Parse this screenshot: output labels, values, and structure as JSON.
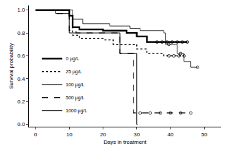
{
  "chart_data": {
    "type": "line",
    "x_label": "Days in treatment",
    "y_label": "Survival probability",
    "xlim": [
      -2,
      55
    ],
    "xticks": [
      0,
      10,
      20,
      30,
      40,
      50
    ],
    "ylim": [
      -0.02,
      1.04
    ],
    "yticks": [
      {
        "value": 0,
        "label": "0.0"
      },
      0.2,
      0.4,
      0.6,
      0.8,
      {
        "value": 1,
        "label": "1.0"
      }
    ],
    "grid": false,
    "legend": "lower left",
    "series": [
      {
        "name": "0 µg/L",
        "color": "#000000",
        "line_style": "solid",
        "x": [
          0,
          10,
          11,
          13,
          20,
          27,
          30,
          33,
          45
        ],
        "values": [
          1.0,
          0.95,
          0.85,
          0.83,
          0.82,
          0.8,
          0.77,
          0.72,
          0.72
        ],
        "censored": {
          "x": [
            36,
            37.5,
            39,
            40.5,
            42,
            43.5,
            45
          ],
          "values": [
            0.72,
            0.72,
            0.72,
            0.72,
            0.72,
            0.72,
            0.72
          ]
        }
      },
      {
        "name": "25 µg/L",
        "color": "#000000",
        "line_style": "dot",
        "x": [
          0,
          10,
          11,
          13,
          20,
          23,
          30,
          33,
          38,
          44
        ],
        "values": [
          1.0,
          0.95,
          0.78,
          0.75,
          0.74,
          0.7,
          0.66,
          0.62,
          0.6,
          0.6
        ],
        "censored": {
          "x": [
            39.5,
            41,
            42.5,
            44
          ],
          "values": [
            0.6,
            0.6,
            0.6,
            0.6
          ]
        }
      },
      {
        "name": "100 µg/L",
        "color": "#000000",
        "line_style": "solid",
        "x": [
          0,
          11,
          14,
          22,
          28,
          31,
          38,
          38.5,
          42,
          44,
          46,
          48
        ],
        "values": [
          1.0,
          0.92,
          0.88,
          0.86,
          0.84,
          0.82,
          0.8,
          0.7,
          0.62,
          0.55,
          0.5,
          0.5
        ],
        "censored": {
          "x": [
            39.5,
            43,
            48
          ],
          "values": [
            0.7,
            0.62,
            0.5
          ]
        }
      },
      {
        "name": "500 µg/L",
        "color": "#000000",
        "line_style": "dash",
        "x": [
          0,
          6,
          10,
          12,
          25,
          29,
          46
        ],
        "values": [
          1.0,
          0.97,
          0.82,
          0.8,
          0.62,
          0.1,
          0.1
        ],
        "censored": {
          "x": [
            31,
            34,
            37,
            40,
            43,
            46
          ],
          "values": [
            0.1,
            0.1,
            0.1,
            0.1,
            0.1,
            0.1
          ]
        }
      },
      {
        "name": "1000 µg/L",
        "color": "#000000",
        "line_style": "solid",
        "x": [
          0,
          6,
          10,
          25,
          30,
          30.2
        ],
        "values": [
          1.0,
          0.97,
          0.8,
          0.62,
          0.0,
          0.0
        ]
      }
    ]
  }
}
